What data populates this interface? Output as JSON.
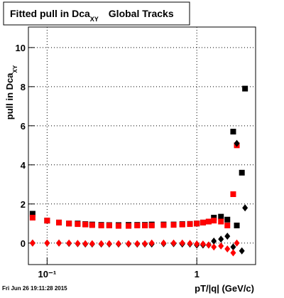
{
  "chart_data": {
    "type": "scatter",
    "title": {
      "main": "Fitted pull in Dca",
      "sub": "XY",
      "rest": "Global Tracks"
    },
    "y_label": {
      "main": "pull in Dca",
      "sub": "XY"
    },
    "x_label": "pT/|q| (GeV/c)",
    "footer": "Fri Jun 26 19:11:28 2015",
    "log_x": true,
    "grid": true,
    "xlim": [
      0.075,
      2.47
    ],
    "ylim": [
      -1.1,
      11.05
    ],
    "xticks": [
      {
        "value": 0.1,
        "label": "10⁻¹"
      },
      1
    ],
    "yticks": [
      0,
      2,
      4,
      6,
      8,
      10
    ],
    "x": [
      0.08,
      0.1,
      0.12,
      0.14,
      0.16,
      0.18,
      0.2,
      0.23,
      0.26,
      0.3,
      0.35,
      0.4,
      0.45,
      0.5,
      0.6,
      0.7,
      0.8,
      0.9,
      1.0,
      1.1,
      1.2,
      1.3,
      1.45,
      1.6,
      1.75,
      1.85,
      2.0,
      2.1
    ],
    "series": [
      {
        "color": "#000000",
        "marker": "square",
        "values": [
          1.5,
          1.15,
          1.05,
          1.0,
          1.0,
          0.97,
          0.95,
          0.93,
          0.92,
          0.92,
          0.93,
          0.93,
          0.93,
          0.95,
          0.95,
          0.95,
          0.97,
          0.98,
          1.0,
          1.05,
          1.1,
          1.3,
          1.35,
          1.2,
          5.7,
          0.9,
          3.6,
          7.9
        ]
      },
      {
        "color": "#ff0000",
        "marker": "square",
        "values": [
          1.3,
          1.15,
          1.05,
          1.0,
          0.97,
          0.95,
          0.92,
          0.9,
          0.9,
          0.88,
          0.88,
          0.9,
          0.9,
          0.9,
          0.92,
          0.93,
          0.95,
          0.97,
          1.0,
          1.05,
          1.1,
          1.15,
          1.1,
          0.9,
          2.5,
          5.0,
          null,
          null
        ]
      },
      {
        "color": "#000000",
        "marker": "diamond",
        "values": [
          0,
          0,
          0,
          -0.02,
          -0.03,
          -0.05,
          -0.05,
          -0.05,
          -0.05,
          -0.05,
          -0.05,
          -0.05,
          -0.05,
          -0.05,
          -0.03,
          -0.03,
          -0.05,
          -0.05,
          -0.1,
          -0.1,
          -0.1,
          0.1,
          0.2,
          0.35,
          -0.2,
          5.1,
          -0.4,
          1.8
        ]
      },
      {
        "color": "#ff0000",
        "marker": "diamond",
        "values": [
          0,
          0,
          0,
          0,
          -0.02,
          -0.03,
          -0.03,
          -0.03,
          -0.03,
          -0.03,
          -0.03,
          -0.03,
          -0.03,
          0,
          0,
          0,
          0,
          -0.02,
          -0.05,
          -0.05,
          -0.1,
          -0.2,
          -0.15,
          -0.3,
          -0.5,
          0,
          null,
          null
        ]
      }
    ]
  }
}
